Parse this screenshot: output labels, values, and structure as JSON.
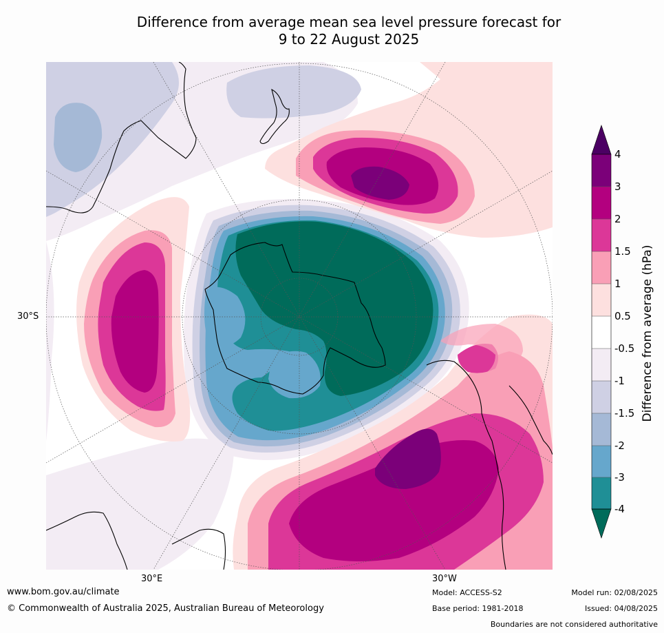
{
  "title": {
    "line1": "Difference from average mean sea level pressure forecast for",
    "line2": "9 to 22 August 2025"
  },
  "map": {
    "lat_label": "30°S",
    "lon_labels": [
      "30°E",
      "30°W"
    ],
    "projection": "south polar stereographic"
  },
  "colorbar": {
    "label": "Difference from average (hPa)",
    "ticks": [
      "4",
      "3",
      "2",
      "1.5",
      "1",
      "0.5",
      "-0.5",
      "-1",
      "-1.5",
      "-2",
      "-3",
      "-4"
    ],
    "colors": [
      "#4b0063",
      "#7b0079",
      "#b3007f",
      "#dc3798",
      "#f99fb6",
      "#fde0df",
      "#ffffff",
      "#f3ecf4",
      "#cfd0e4",
      "#a5b9d6",
      "#66a7cc",
      "#1f8f96",
      "#006b5a"
    ]
  },
  "footer": {
    "website": "www.bom.gov.au/climate",
    "copyright": "© Commonwealth of Australia 2025, Australian Bureau of Meteorology",
    "model": "Model: ACCESS-S2",
    "base_period": "Base period: 1981-2018",
    "model_run": "Model run: 02/08/2025",
    "issued": "Issued: 04/08/2025",
    "boundaries_note": "Boundaries are not considered authoritative"
  }
}
